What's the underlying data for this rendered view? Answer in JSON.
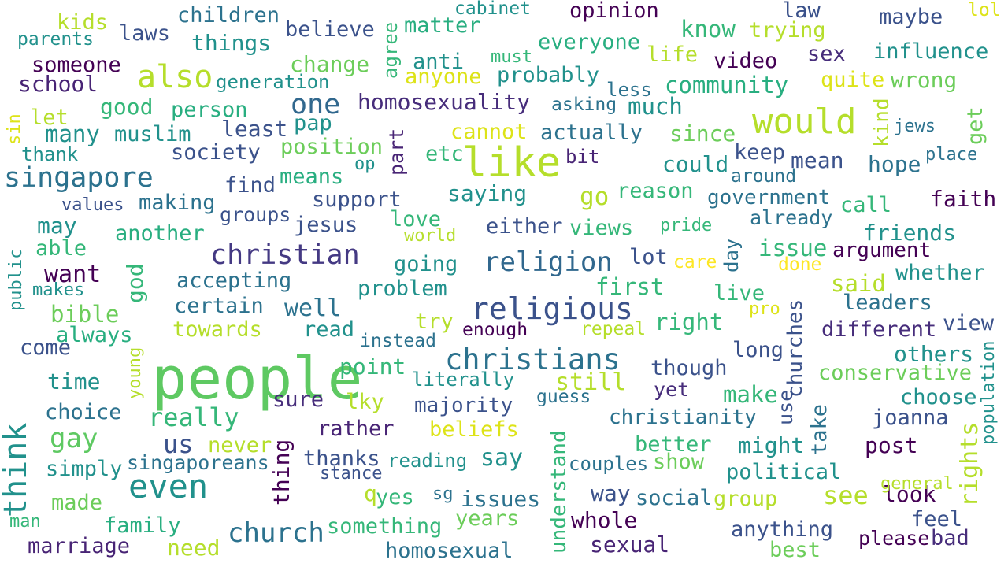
{
  "words": [
    {
      "text": "people",
      "color": "#5ec962"
    },
    {
      "text": "like",
      "color": "#b5de2b"
    },
    {
      "text": "would",
      "color": "#b5de2b"
    },
    {
      "text": "religious",
      "color": "#3b528b"
    },
    {
      "text": "christians",
      "color": "#2c728e"
    },
    {
      "text": "even",
      "color": "#21918c"
    },
    {
      "text": "think",
      "color": "#21918c"
    },
    {
      "text": "christian",
      "color": "#443983"
    },
    {
      "text": "religion",
      "color": "#31688e"
    },
    {
      "text": "singapore",
      "color": "#2c728e"
    },
    {
      "text": "also",
      "color": "#b5de2b"
    },
    {
      "text": "church",
      "color": "#2c728e"
    },
    {
      "text": "one",
      "color": "#31688e"
    },
    {
      "text": "gay",
      "color": "#5ec962"
    },
    {
      "text": "homosexuality",
      "color": "#472d7b"
    },
    {
      "text": "really",
      "color": "#35b779"
    },
    {
      "text": "see",
      "color": "#b5de2b"
    },
    {
      "text": "christianity",
      "color": "#2c728e"
    },
    {
      "text": "community",
      "color": "#28ae80"
    },
    {
      "text": "still",
      "color": "#b5de2b"
    },
    {
      "text": "know",
      "color": "#35b779"
    },
    {
      "text": "say",
      "color": "#21918c"
    },
    {
      "text": "government",
      "color": "#2c728e"
    },
    {
      "text": "majority",
      "color": "#3b528b"
    },
    {
      "text": "different",
      "color": "#472d7b"
    },
    {
      "text": "right",
      "color": "#35b779"
    },
    {
      "text": "make",
      "color": "#35b779"
    },
    {
      "text": "good",
      "color": "#35b779"
    },
    {
      "text": "many",
      "color": "#21918c"
    },
    {
      "text": "much",
      "color": "#21918c"
    },
    {
      "text": "said",
      "color": "#b5de2b"
    },
    {
      "text": "point",
      "color": "#35b779"
    },
    {
      "text": "well",
      "color": "#2c728e"
    },
    {
      "text": "laws",
      "color": "#3b528b"
    },
    {
      "text": "things",
      "color": "#21918c"
    },
    {
      "text": "children",
      "color": "#2c728e"
    },
    {
      "text": "believe",
      "color": "#3b528b"
    },
    {
      "text": "society",
      "color": "#3b528b"
    },
    {
      "text": "person",
      "color": "#28ae80"
    },
    {
      "text": "support",
      "color": "#3b528b"
    },
    {
      "text": "anything",
      "color": "#3b528b"
    },
    {
      "text": "marriage",
      "color": "#482475"
    },
    {
      "text": "political",
      "color": "#21918c"
    },
    {
      "text": "actually",
      "color": "#2c728e"
    },
    {
      "text": "argument",
      "color": "#440154"
    },
    {
      "text": "conservative",
      "color": "#6ccd5a"
    },
    {
      "text": "something",
      "color": "#35b779"
    },
    {
      "text": "homosexual",
      "color": "#2c728e"
    },
    {
      "text": "time",
      "color": "#21918c"
    },
    {
      "text": "bible",
      "color": "#6ccd5a"
    },
    {
      "text": "probably",
      "color": "#21918c"
    },
    {
      "text": "law",
      "color": "#3b528b"
    },
    {
      "text": "everyone",
      "color": "#28ae80"
    },
    {
      "text": "influence",
      "color": "#21918c"
    },
    {
      "text": "opinion",
      "color": "#440154"
    },
    {
      "text": "matter",
      "color": "#28ae80"
    },
    {
      "text": "trying",
      "color": "#b5de2b"
    },
    {
      "text": "maybe",
      "color": "#3b528b"
    },
    {
      "text": "wrong",
      "color": "#6ccd5a"
    },
    {
      "text": "quite",
      "color": "#dde318"
    },
    {
      "text": "leaders",
      "color": "#2c728e"
    },
    {
      "text": "others",
      "color": "#21918c"
    },
    {
      "text": "whether",
      "color": "#21918c"
    },
    {
      "text": "choose",
      "color": "#21918c"
    },
    {
      "text": "joanna",
      "color": "#3b528b"
    },
    {
      "text": "post",
      "color": "#440154"
    },
    {
      "text": "look",
      "color": "#440154"
    },
    {
      "text": "feel",
      "color": "#3b528b"
    },
    {
      "text": "bad",
      "color": "#472d7b"
    },
    {
      "text": "please",
      "color": "#440154"
    },
    {
      "text": "best",
      "color": "#6ccd5a"
    },
    {
      "text": "sexual",
      "color": "#482475"
    },
    {
      "text": "whole",
      "color": "#440154"
    },
    {
      "text": "group",
      "color": "#b5de2b"
    },
    {
      "text": "social",
      "color": "#2c728e"
    },
    {
      "text": "way",
      "color": "#3b528b"
    },
    {
      "text": "might",
      "color": "#21918c"
    },
    {
      "text": "better",
      "color": "#35b779"
    },
    {
      "text": "show",
      "color": "#6ccd5a"
    },
    {
      "text": "couples",
      "color": "#2c728e"
    },
    {
      "text": "issues",
      "color": "#2c728e"
    },
    {
      "text": "years",
      "color": "#6ccd5a"
    },
    {
      "text": "yes",
      "color": "#35b779"
    },
    {
      "text": "q",
      "color": "#b5de2b"
    },
    {
      "text": "sg",
      "color": "#2c728e"
    },
    {
      "text": "reading",
      "color": "#21918c"
    },
    {
      "text": "thanks",
      "color": "#3b528b"
    },
    {
      "text": "stance",
      "color": "#3b528b"
    },
    {
      "text": "singaporeans",
      "color": "#2c728e"
    },
    {
      "text": "never",
      "color": "#b5de2b"
    },
    {
      "text": "rather",
      "color": "#482475"
    },
    {
      "text": "beliefs",
      "color": "#dde318"
    },
    {
      "text": "sure",
      "color": "#472d7b"
    },
    {
      "text": "lky",
      "color": "#b5de2b"
    },
    {
      "text": "guess",
      "color": "#2c728e"
    },
    {
      "text": "literally",
      "color": "#21918c"
    },
    {
      "text": "us",
      "color": "#3b528b"
    },
    {
      "text": "choice",
      "color": "#2c728e"
    },
    {
      "text": "simply",
      "color": "#21918c"
    },
    {
      "text": "made",
      "color": "#6ccd5a"
    },
    {
      "text": "family",
      "color": "#28ae80"
    },
    {
      "text": "need",
      "color": "#b5de2b"
    },
    {
      "text": "man",
      "color": "#35b779"
    },
    {
      "text": "come",
      "color": "#3b528b"
    },
    {
      "text": "always",
      "color": "#28ae80"
    },
    {
      "text": "towards",
      "color": "#b5de2b"
    },
    {
      "text": "certain",
      "color": "#2c728e"
    },
    {
      "text": "accepting",
      "color": "#2c728e"
    },
    {
      "text": "problem",
      "color": "#21918c"
    },
    {
      "text": "read",
      "color": "#21918c"
    },
    {
      "text": "instead",
      "color": "#2c728e"
    },
    {
      "text": "try",
      "color": "#b5de2b"
    },
    {
      "text": "enough",
      "color": "#440154"
    },
    {
      "text": "repeal",
      "color": "#b5de2b"
    },
    {
      "text": "first",
      "color": "#35b779"
    },
    {
      "text": "live",
      "color": "#35b779"
    },
    {
      "text": "pro",
      "color": "#dde318"
    },
    {
      "text": "long",
      "color": "#3b528b"
    },
    {
      "text": "though",
      "color": "#3b528b"
    },
    {
      "text": "yet",
      "color": "#472d7b"
    },
    {
      "text": "view",
      "color": "#3b528b"
    },
    {
      "text": "want",
      "color": "#440154"
    },
    {
      "text": "makes",
      "color": "#21918c"
    },
    {
      "text": "able",
      "color": "#35b779"
    },
    {
      "text": "may",
      "color": "#21918c"
    },
    {
      "text": "another",
      "color": "#28ae80"
    },
    {
      "text": "jesus",
      "color": "#3b528b"
    },
    {
      "text": "going",
      "color": "#21918c"
    },
    {
      "text": "lot",
      "color": "#3b528b"
    },
    {
      "text": "care",
      "color": "#fde725"
    },
    {
      "text": "issue",
      "color": "#35b779"
    },
    {
      "text": "done",
      "color": "#fde725"
    },
    {
      "text": "values",
      "color": "#3b528b"
    },
    {
      "text": "making",
      "color": "#2c728e"
    },
    {
      "text": "groups",
      "color": "#3b528b"
    },
    {
      "text": "love",
      "color": "#35b779"
    },
    {
      "text": "world",
      "color": "#b5de2b"
    },
    {
      "text": "either",
      "color": "#3b528b"
    },
    {
      "text": "views",
      "color": "#35b779"
    },
    {
      "text": "pride",
      "color": "#35b779"
    },
    {
      "text": "friends",
      "color": "#21918c"
    },
    {
      "text": "already",
      "color": "#2c728e"
    },
    {
      "text": "call",
      "color": "#35b779"
    },
    {
      "text": "faith",
      "color": "#440154"
    },
    {
      "text": "go",
      "color": "#b5de2b"
    },
    {
      "text": "reason",
      "color": "#35b779"
    },
    {
      "text": "saying",
      "color": "#21918c"
    },
    {
      "text": "find",
      "color": "#3b528b"
    },
    {
      "text": "means",
      "color": "#28ae80"
    },
    {
      "text": "op",
      "color": "#21918c"
    },
    {
      "text": "etc",
      "color": "#35b779"
    },
    {
      "text": "bit",
      "color": "#482475"
    },
    {
      "text": "could",
      "color": "#21918c"
    },
    {
      "text": "around",
      "color": "#2c728e"
    },
    {
      "text": "mean",
      "color": "#3b528b"
    },
    {
      "text": "hope",
      "color": "#2c728e"
    },
    {
      "text": "place",
      "color": "#2c728e"
    },
    {
      "text": "keep",
      "color": "#3b528b"
    },
    {
      "text": "since",
      "color": "#6ccd5a"
    },
    {
      "text": "cannot",
      "color": "#dde318"
    },
    {
      "text": "position",
      "color": "#6ccd5a"
    },
    {
      "text": "pap",
      "color": "#21918c"
    },
    {
      "text": "least",
      "color": "#3b528b"
    },
    {
      "text": "muslim",
      "color": "#21918c"
    },
    {
      "text": "thank",
      "color": "#21918c"
    },
    {
      "text": "let",
      "color": "#b5de2b"
    },
    {
      "text": "asking",
      "color": "#2c728e"
    },
    {
      "text": "less",
      "color": "#2c728e"
    },
    {
      "text": "jews",
      "color": "#2c728e"
    },
    {
      "text": "generation",
      "color": "#21918c"
    },
    {
      "text": "change",
      "color": "#6ccd5a"
    },
    {
      "text": "anti",
      "color": "#21918c"
    },
    {
      "text": "anyone",
      "color": "#dde318"
    },
    {
      "text": "must",
      "color": "#35b779"
    },
    {
      "text": "life",
      "color": "#b5de2b"
    },
    {
      "text": "video",
      "color": "#440154"
    },
    {
      "text": "sex",
      "color": "#472d7b"
    },
    {
      "text": "kids",
      "color": "#b5de2b"
    },
    {
      "text": "parents",
      "color": "#21918c"
    },
    {
      "text": "someone",
      "color": "#440154"
    },
    {
      "text": "school",
      "color": "#482475"
    },
    {
      "text": "cabinet",
      "color": "#21918c"
    },
    {
      "text": "lol",
      "color": "#dde318"
    },
    {
      "text": "agree",
      "color": "#35b779"
    },
    {
      "text": "part",
      "color": "#482475"
    },
    {
      "text": "kind",
      "color": "#b5de2b"
    },
    {
      "text": "get",
      "color": "#6ccd5a"
    },
    {
      "text": "sin",
      "color": "#dde318"
    },
    {
      "text": "public",
      "color": "#21918c"
    },
    {
      "text": "god",
      "color": "#35b779"
    },
    {
      "text": "young",
      "color": "#b5de2b"
    },
    {
      "text": "day",
      "color": "#2c728e"
    },
    {
      "text": "churches",
      "color": "#3b528b"
    },
    {
      "text": "use",
      "color": "#3b528b"
    },
    {
      "text": "take",
      "color": "#2c728e"
    },
    {
      "text": "population",
      "color": "#21918c"
    },
    {
      "text": "rights",
      "color": "#b5de2b"
    },
    {
      "text": "thing",
      "color": "#440154"
    },
    {
      "text": "understand",
      "color": "#35b779"
    },
    {
      "text": "general",
      "color": "#b5de2b"
    }
  ]
}
